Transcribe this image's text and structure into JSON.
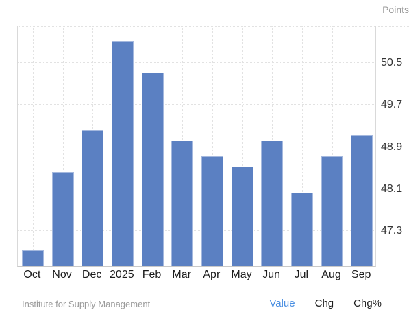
{
  "units_label": "Points",
  "footer": {
    "source": "Institute for Supply Management",
    "links": [
      {
        "id": "value",
        "label": "Value",
        "active": true
      },
      {
        "id": "chg",
        "label": "Chg",
        "active": false
      },
      {
        "id": "chg-pct",
        "label": "Chg%",
        "active": false
      }
    ]
  },
  "colors": {
    "bar": "#5b80c2",
    "bar_border": "#a4b8de",
    "active_link": "#4a8fe2",
    "gridline": "#e2e2e2",
    "axis_text": "#333333",
    "muted_text": "#9b9b9b"
  },
  "chart_data": {
    "type": "bar",
    "categories": [
      "Oct",
      "Nov",
      "Dec",
      "2025",
      "Feb",
      "Mar",
      "Apr",
      "May",
      "Jun",
      "Jul",
      "Aug",
      "Sep"
    ],
    "values": [
      46.9,
      48.4,
      49.2,
      50.9,
      50.3,
      49.0,
      48.7,
      48.5,
      49.0,
      48.0,
      48.7,
      49.1
    ],
    "title": "",
    "xlabel": "",
    "ylabel": "Points",
    "yticks": [
      47.3,
      48.1,
      48.9,
      49.7,
      50.5
    ],
    "ylim": [
      46.6,
      51.2
    ],
    "grid": true,
    "tick_side": "right",
    "legend": false
  }
}
